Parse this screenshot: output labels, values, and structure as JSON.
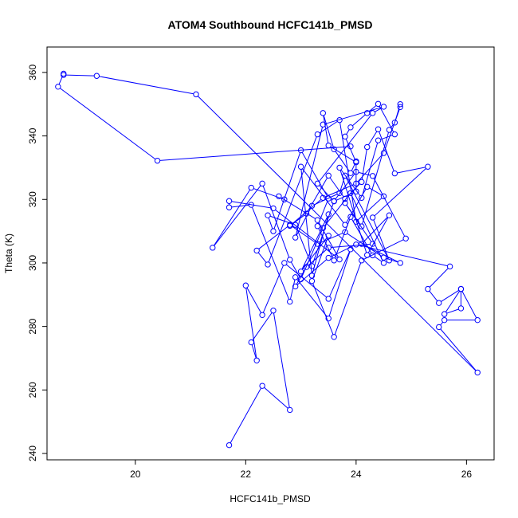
{
  "chart_data": {
    "type": "line",
    "title": "ATOM4 Southbound HCFC141b_PMSD",
    "xlabel": "HCFC141b_PMSD",
    "ylabel": "Theta (K)",
    "xlim": [
      18.4,
      26.5
    ],
    "ylim": [
      238,
      368
    ],
    "xticks": [
      20,
      22,
      24,
      26
    ],
    "yticks": [
      240,
      260,
      280,
      300,
      320,
      340,
      360
    ],
    "grid": false,
    "series_color": "#0000ff",
    "markers": "open-circle",
    "x": [
      21.7,
      22.3,
      22.8,
      22.5,
      22.1,
      22.2,
      22.0,
      22.3,
      22.7,
      23.5,
      23.9,
      23.5,
      22.9,
      22.8,
      22.1,
      21.7,
      21.7,
      22.5,
      23.7,
      23.3,
      22.6,
      22.7,
      22.1,
      21.4,
      22.3,
      22.8,
      23.0,
      23.4,
      23.9,
      24.5,
      24.3,
      23.9,
      23.6,
      23.3,
      23.5,
      23.0,
      22.5,
      22.4,
      22.9,
      23.2,
      23.6,
      24.0,
      24.3,
      24.9,
      24.1,
      23.6,
      23.2,
      23.5,
      23.0,
      23.5,
      23.2,
      23.0,
      23.8,
      24.2,
      24.5,
      24.0,
      23.7,
      23.3,
      22.4,
      22.2,
      22.8,
      23.3,
      23.8,
      24.5,
      24.8,
      24.1,
      24.6,
      24.2,
      23.7,
      24.1,
      24.4,
      24.7,
      24.4,
      24.2,
      23.9,
      23.8,
      24.0,
      23.5,
      23.4,
      23.6,
      23.9,
      24.0,
      24.0,
      23.6,
      23.3,
      24.3,
      24.5,
      23.4,
      22.9,
      23.2,
      23.7,
      23.8,
      24.6,
      24.3,
      25.3,
      24.7,
      24.4,
      24.2,
      24.1,
      23.8,
      23.5,
      23.1,
      22.8,
      23.4,
      24.0,
      24.5,
      24.8,
      24.8,
      24.7,
      24.6,
      24.1,
      23.8,
      24.3,
      23.5,
      23.1,
      22.9,
      23.5,
      24.0,
      25.7,
      25.3,
      25.5,
      25.9,
      25.9,
      25.6,
      25.9,
      26.2,
      25.6,
      25.5,
      26.2,
      21.1,
      19.3,
      18.7,
      18.7,
      18.6,
      20.4,
      23.9
    ],
    "y": [
      242.6,
      261.3,
      253.7,
      285.0,
      275.0,
      269.3,
      292.9,
      283.6,
      300.0,
      288.7,
      304.3,
      282.5,
      295.5,
      287.8,
      318.3,
      317.5,
      319.5,
      317.2,
      301.1,
      313.5,
      321.0,
      320.0,
      323.7,
      304.8,
      325.0,
      301.0,
      294.9,
      311.0,
      322.0,
      300.0,
      302.4,
      314.5,
      300.8,
      311.6,
      320.3,
      335.5,
      310.0,
      315.0,
      312.0,
      299.0,
      319.5,
      328.7,
      327.4,
      307.7,
      300.8,
      276.7,
      294.3,
      308.6,
      297.3,
      315.3,
      296.0,
      330.3,
      312.0,
      324.0,
      321.0,
      313.0,
      345.0,
      340.5,
      299.5,
      303.9,
      312.0,
      306.0,
      309.7,
      301.7,
      300.0,
      306.0,
      315.0,
      302.5,
      330.0,
      320.5,
      338.6,
      340.5,
      350.1,
      347.2,
      342.7,
      339.8,
      331.7,
      337.0,
      347.2,
      335.8,
      328.3,
      332.0,
      322.5,
      319.4,
      325.0,
      347.2,
      349.2,
      343.6,
      308.0,
      318.0,
      322.0,
      327.5,
      300.8,
      314.3,
      330.3,
      328.2,
      342.1,
      336.5,
      325.5,
      320.2,
      327.5,
      315.5,
      311.7,
      320.5,
      325.0,
      334.6,
      349.1,
      350.0,
      344.2,
      341.9,
      311.5,
      318.9,
      306.0,
      304.8,
      298.7,
      292.6,
      301.6,
      305.8,
      298.9,
      291.8,
      287.4,
      291.8,
      285.7,
      283.9,
      291.8,
      282.0,
      282.0,
      279.8,
      265.5,
      353.1,
      358.9,
      359.2,
      359.6,
      355.5,
      332.2,
      336.7
    ]
  }
}
